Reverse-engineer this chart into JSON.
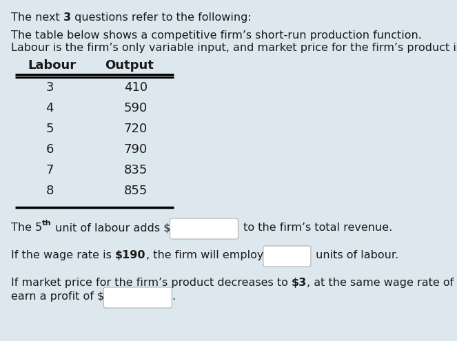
{
  "background_color": "#dce8ed",
  "text_color": "#1a1a1a",
  "box_color": "#ffffff",
  "box_edge_color": "#b0b0b0",
  "table_data": [
    [
      3,
      410
    ],
    [
      4,
      590
    ],
    [
      5,
      720
    ],
    [
      6,
      790
    ],
    [
      7,
      835
    ],
    [
      8,
      855
    ]
  ],
  "font_size": 11.5,
  "table_font_size": 13
}
